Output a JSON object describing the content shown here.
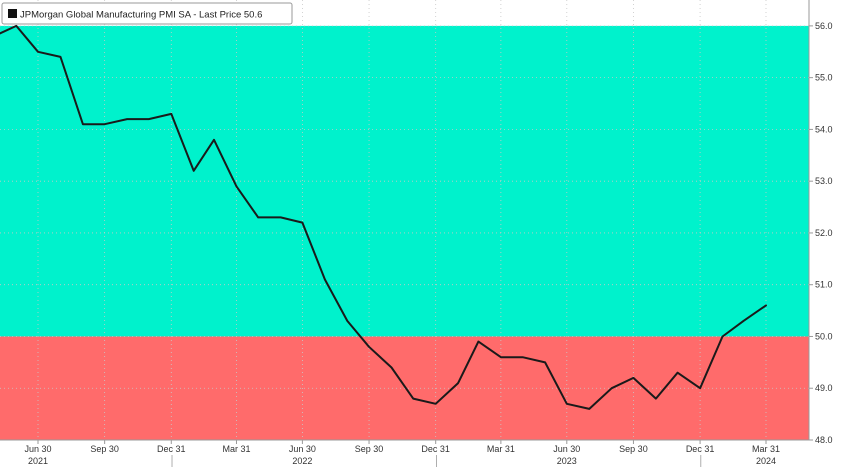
{
  "colors": {
    "above_band": "#00f2cc",
    "below_band": "#ff6b6b",
    "line": "#1a1a1a",
    "grid": "#c8c8c8",
    "axis": "#9a9a9a"
  },
  "legend": {
    "label": "JPMorgan Global Manufacturing PMI SA - Last Price",
    "value": "50.6"
  },
  "chart_data": {
    "type": "line",
    "title": "",
    "xlabel": "",
    "ylabel": "",
    "ylim": [
      48.0,
      56.5
    ],
    "threshold": 50.0,
    "y_ticks": [
      "48.0",
      "49.0",
      "50.0",
      "51.0",
      "52.0",
      "53.0",
      "54.0",
      "55.0",
      "56.0"
    ],
    "x_ticks": [
      {
        "label": "Jun 30",
        "date": "2021-06-30"
      },
      {
        "label": "Sep 30",
        "date": "2021-09-30"
      },
      {
        "label": "Dec 31",
        "date": "2021-12-31"
      },
      {
        "label": "Mar 31",
        "date": "2022-03-31"
      },
      {
        "label": "Jun 30",
        "date": "2022-06-30"
      },
      {
        "label": "Sep 30",
        "date": "2022-09-30"
      },
      {
        "label": "Dec 31",
        "date": "2022-12-31"
      },
      {
        "label": "Mar 31",
        "date": "2023-03-31"
      },
      {
        "label": "Jun 30",
        "date": "2023-06-30"
      },
      {
        "label": "Sep 30",
        "date": "2023-09-30"
      },
      {
        "label": "Dec 31",
        "date": "2023-12-31"
      },
      {
        "label": "Mar 31",
        "date": "2024-03-31"
      }
    ],
    "year_labels": [
      {
        "label": "2021",
        "date": "2021-06-30"
      },
      {
        "label": "2022",
        "date": "2022-06-30"
      },
      {
        "label": "2023",
        "date": "2023-06-30"
      },
      {
        "label": "2024",
        "date": "2024-03-31"
      }
    ],
    "series": [
      {
        "name": "JPMorgan Global Manufacturing PMI SA",
        "points": [
          {
            "x": "2021-04-30",
            "y": 55.8
          },
          {
            "x": "2021-05-31",
            "y": 56.0
          },
          {
            "x": "2021-06-30",
            "y": 55.5
          },
          {
            "x": "2021-07-31",
            "y": 55.4
          },
          {
            "x": "2021-08-31",
            "y": 54.1
          },
          {
            "x": "2021-09-30",
            "y": 54.1
          },
          {
            "x": "2021-10-31",
            "y": 54.2
          },
          {
            "x": "2021-11-30",
            "y": 54.2
          },
          {
            "x": "2021-12-31",
            "y": 54.3
          },
          {
            "x": "2022-01-31",
            "y": 53.2
          },
          {
            "x": "2022-02-28",
            "y": 53.8
          },
          {
            "x": "2022-03-31",
            "y": 52.9
          },
          {
            "x": "2022-04-30",
            "y": 52.3
          },
          {
            "x": "2022-05-31",
            "y": 52.3
          },
          {
            "x": "2022-06-30",
            "y": 52.2
          },
          {
            "x": "2022-07-31",
            "y": 51.1
          },
          {
            "x": "2022-08-31",
            "y": 50.3
          },
          {
            "x": "2022-09-30",
            "y": 49.8
          },
          {
            "x": "2022-10-31",
            "y": 49.4
          },
          {
            "x": "2022-11-30",
            "y": 48.8
          },
          {
            "x": "2022-12-31",
            "y": 48.7
          },
          {
            "x": "2023-01-31",
            "y": 49.1
          },
          {
            "x": "2023-02-28",
            "y": 49.9
          },
          {
            "x": "2023-03-31",
            "y": 49.6
          },
          {
            "x": "2023-04-30",
            "y": 49.6
          },
          {
            "x": "2023-05-31",
            "y": 49.5
          },
          {
            "x": "2023-06-30",
            "y": 48.7
          },
          {
            "x": "2023-07-31",
            "y": 48.6
          },
          {
            "x": "2023-08-31",
            "y": 49.0
          },
          {
            "x": "2023-09-30",
            "y": 49.2
          },
          {
            "x": "2023-10-31",
            "y": 48.8
          },
          {
            "x": "2023-11-30",
            "y": 49.3
          },
          {
            "x": "2023-12-31",
            "y": 49.0
          },
          {
            "x": "2024-01-31",
            "y": 50.0
          },
          {
            "x": "2024-02-29",
            "y": 50.3
          },
          {
            "x": "2024-03-31",
            "y": 50.6
          }
        ]
      }
    ]
  }
}
